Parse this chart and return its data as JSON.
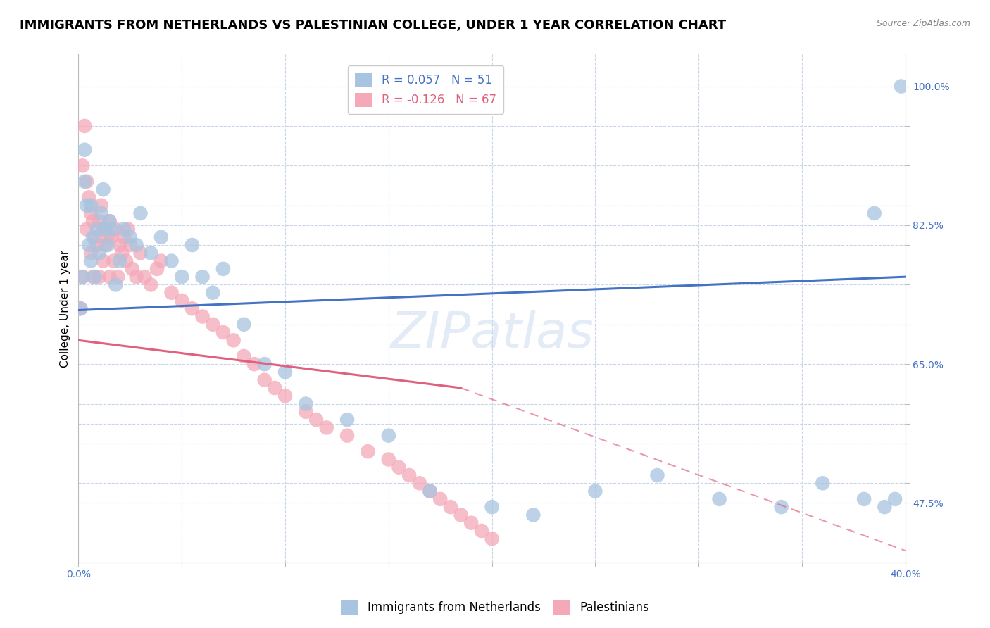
{
  "title": "IMMIGRANTS FROM NETHERLANDS VS PALESTINIAN COLLEGE, UNDER 1 YEAR CORRELATION CHART",
  "source": "Source: ZipAtlas.com",
  "ylabel": "College, Under 1 year",
  "xlim": [
    0.0,
    0.4
  ],
  "ylim": [
    0.4,
    1.04
  ],
  "series1_label": "Immigrants from Netherlands",
  "series1_color": "#a8c4e0",
  "series1_R": 0.057,
  "series1_N": 51,
  "series2_label": "Palestinians",
  "series2_color": "#f4a8b8",
  "series2_R": -0.126,
  "series2_N": 67,
  "trend1_color": "#4472c4",
  "trend2_color": "#e06080",
  "background_color": "#ffffff",
  "grid_color": "#c8d4e8",
  "title_fontsize": 13,
  "axis_fontsize": 11,
  "tick_fontsize": 10,
  "legend_fontsize": 12,
  "trend1_x0": 0.0,
  "trend1_y0": 0.718,
  "trend1_x1": 0.4,
  "trend1_y1": 0.76,
  "trend2_solid_x0": 0.0,
  "trend2_solid_y0": 0.68,
  "trend2_solid_x1": 0.185,
  "trend2_solid_y1": 0.62,
  "trend2_dash_x1": 0.4,
  "trend2_dash_y1": 0.415,
  "series1_x": [
    0.001,
    0.002,
    0.003,
    0.003,
    0.004,
    0.005,
    0.006,
    0.006,
    0.007,
    0.008,
    0.009,
    0.01,
    0.011,
    0.012,
    0.013,
    0.014,
    0.015,
    0.016,
    0.018,
    0.02,
    0.022,
    0.025,
    0.028,
    0.03,
    0.035,
    0.04,
    0.045,
    0.05,
    0.055,
    0.06,
    0.065,
    0.07,
    0.08,
    0.09,
    0.1,
    0.11,
    0.13,
    0.15,
    0.17,
    0.2,
    0.22,
    0.25,
    0.28,
    0.31,
    0.34,
    0.36,
    0.38,
    0.385,
    0.39,
    0.395,
    0.398
  ],
  "series1_y": [
    0.72,
    0.76,
    0.88,
    0.92,
    0.85,
    0.8,
    0.78,
    0.85,
    0.81,
    0.76,
    0.82,
    0.79,
    0.84,
    0.87,
    0.82,
    0.8,
    0.83,
    0.82,
    0.75,
    0.78,
    0.82,
    0.81,
    0.8,
    0.84,
    0.79,
    0.81,
    0.78,
    0.76,
    0.8,
    0.76,
    0.74,
    0.77,
    0.7,
    0.65,
    0.64,
    0.6,
    0.58,
    0.56,
    0.49,
    0.47,
    0.46,
    0.49,
    0.51,
    0.48,
    0.47,
    0.5,
    0.48,
    0.84,
    0.47,
    0.48,
    1.0
  ],
  "series2_x": [
    0.001,
    0.002,
    0.002,
    0.003,
    0.004,
    0.004,
    0.005,
    0.006,
    0.006,
    0.007,
    0.007,
    0.008,
    0.009,
    0.01,
    0.01,
    0.011,
    0.012,
    0.012,
    0.013,
    0.014,
    0.015,
    0.015,
    0.016,
    0.017,
    0.018,
    0.019,
    0.02,
    0.021,
    0.022,
    0.023,
    0.024,
    0.025,
    0.026,
    0.028,
    0.03,
    0.032,
    0.035,
    0.038,
    0.04,
    0.045,
    0.05,
    0.055,
    0.06,
    0.065,
    0.07,
    0.075,
    0.08,
    0.085,
    0.09,
    0.095,
    0.1,
    0.11,
    0.115,
    0.12,
    0.13,
    0.14,
    0.15,
    0.155,
    0.16,
    0.165,
    0.17,
    0.175,
    0.18,
    0.185,
    0.19,
    0.195,
    0.2
  ],
  "series2_y": [
    0.72,
    0.76,
    0.9,
    0.95,
    0.88,
    0.82,
    0.86,
    0.84,
    0.79,
    0.83,
    0.76,
    0.81,
    0.8,
    0.83,
    0.76,
    0.85,
    0.82,
    0.78,
    0.8,
    0.81,
    0.83,
    0.76,
    0.81,
    0.78,
    0.82,
    0.76,
    0.8,
    0.79,
    0.81,
    0.78,
    0.82,
    0.8,
    0.77,
    0.76,
    0.79,
    0.76,
    0.75,
    0.77,
    0.78,
    0.74,
    0.73,
    0.72,
    0.71,
    0.7,
    0.69,
    0.68,
    0.66,
    0.65,
    0.63,
    0.62,
    0.61,
    0.59,
    0.58,
    0.57,
    0.56,
    0.54,
    0.53,
    0.52,
    0.51,
    0.5,
    0.49,
    0.48,
    0.47,
    0.46,
    0.45,
    0.44,
    0.43
  ]
}
